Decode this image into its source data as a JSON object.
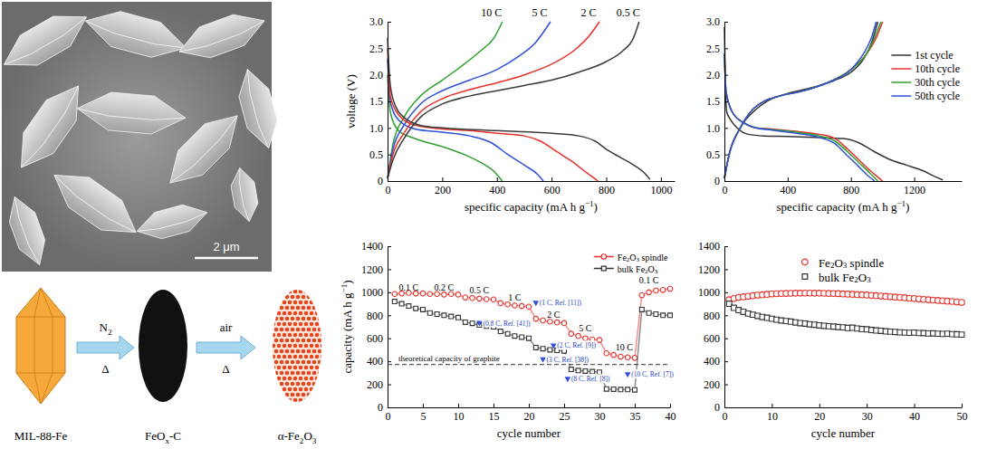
{
  "micrograph": {
    "scale_bar": "2 μm"
  },
  "scheme": {
    "steps": [
      {
        "label": "MIL-88-Fe"
      },
      {
        "label": "FeOx-C"
      },
      {
        "label": "α-Fe2O3"
      }
    ],
    "arrows": [
      {
        "above": "N2",
        "below": "Δ"
      },
      {
        "above": "air",
        "below": "Δ"
      }
    ]
  },
  "chart_data": [
    {
      "type": "line",
      "x_label": "specific capacity (mA h g−1)",
      "y_label": "voltage (V)",
      "xlim": [
        0,
        1050
      ],
      "xticks": [
        0,
        200,
        400,
        600,
        800,
        1000
      ],
      "ylim": [
        0,
        3
      ],
      "yticks": [
        0,
        0.5,
        {
          "value": 1,
          "label": "1.0"
        },
        1.5,
        {
          "value": 2,
          "label": "2.0"
        },
        2.5,
        {
          "value": 3,
          "label": "3.0"
        }
      ],
      "series": [
        {
          "name": "10 C",
          "color": "#2ca02c",
          "discharge": {
            "x": [
              0,
              10,
              40,
              100,
              200,
              280,
              340,
              390,
              420
            ],
            "values": [
              2.0,
              1.3,
              0.95,
              0.8,
              0.65,
              0.5,
              0.35,
              0.18,
              0
            ]
          },
          "charge": {
            "x": [
              0,
              20,
              60,
              120,
              200,
              280,
              340,
              390,
              420
            ],
            "values": [
              0.05,
              0.7,
              1.2,
              1.6,
              1.9,
              2.2,
              2.45,
              2.7,
              3.0
            ]
          }
        },
        {
          "name": "5 C",
          "color": "#2f4fd8",
          "discharge": {
            "x": [
              0,
              10,
              40,
              100,
              200,
              300,
              380,
              440,
              500,
              550,
              570
            ],
            "values": [
              2.3,
              1.5,
              1.15,
              0.98,
              0.92,
              0.85,
              0.72,
              0.5,
              0.3,
              0.12,
              0
            ]
          },
          "charge": {
            "x": [
              0,
              20,
              60,
              120,
              200,
              300,
              400,
              480,
              540,
              596
            ],
            "values": [
              0.05,
              0.6,
              1.05,
              1.45,
              1.7,
              1.9,
              2.1,
              2.35,
              2.6,
              3.0
            ]
          }
        },
        {
          "name": "2 C",
          "color": "#e8302a",
          "discharge": {
            "x": [
              0,
              10,
              40,
              100,
              200,
              300,
              400,
              500,
              560,
              620,
              680,
              730,
              770
            ],
            "values": [
              2.5,
              1.6,
              1.25,
              1.05,
              0.98,
              0.95,
              0.9,
              0.85,
              0.75,
              0.55,
              0.35,
              0.15,
              0
            ]
          },
          "charge": {
            "x": [
              0,
              20,
              60,
              120,
              200,
              300,
              400,
              500,
              600,
              680,
              740,
              775
            ],
            "values": [
              0.05,
              0.5,
              0.9,
              1.3,
              1.55,
              1.72,
              1.85,
              2.0,
              2.2,
              2.45,
              2.75,
              3.0
            ]
          }
        },
        {
          "name": "0.5 C",
          "color": "#3a3a3a",
          "discharge": {
            "x": [
              0,
              10,
              30,
              60,
              120,
              200,
              300,
              400,
              500,
              600,
              700,
              760,
              800,
              850,
              900,
              940,
              960
            ],
            "values": [
              2.7,
              1.8,
              1.4,
              1.2,
              1.05,
              1.0,
              0.97,
              0.95,
              0.93,
              0.9,
              0.85,
              0.75,
              0.6,
              0.45,
              0.3,
              0.15,
              0.03
            ]
          },
          "charge": {
            "x": [
              0,
              20,
              60,
              120,
              200,
              300,
              400,
              500,
              600,
              700,
              800,
              860,
              900,
              920
            ],
            "values": [
              0.05,
              0.4,
              0.8,
              1.2,
              1.45,
              1.6,
              1.7,
              1.8,
              1.9,
              2.05,
              2.25,
              2.45,
              2.7,
              3.0
            ]
          }
        }
      ]
    },
    {
      "type": "line",
      "x_label": "specific capacity (mA h g−1)",
      "legend": "upper right",
      "xlim": [
        0,
        1500
      ],
      "xticks": [
        0,
        400,
        800,
        1200
      ],
      "ylim": [
        0,
        3
      ],
      "yticks": [
        0,
        0.5,
        {
          "value": 1,
          "label": "1.0"
        },
        1.5,
        {
          "value": 2,
          "label": "2.0"
        },
        2.5,
        {
          "value": 3,
          "label": "3.0"
        }
      ],
      "series": [
        {
          "name": "1st cycle",
          "color": "#333333",
          "discharge": {
            "x": [
              0,
              5,
              15,
              40,
              80,
              150,
              250,
              400,
              600,
              750,
              850,
              950,
              1050,
              1150,
              1250,
              1320,
              1380
            ],
            "values": [
              2.9,
              2.0,
              1.3,
              1.15,
              1.0,
              0.88,
              0.85,
              0.84,
              0.82,
              0.8,
              0.72,
              0.55,
              0.4,
              0.3,
              0.2,
              0.1,
              0.02
            ]
          },
          "charge": {
            "x": [
              0,
              30,
              100,
              200,
              300,
              400,
              500,
              600,
              700,
              800,
              880,
              930,
              970
            ],
            "values": [
              0.05,
              0.5,
              1.0,
              1.35,
              1.55,
              1.65,
              1.72,
              1.8,
              1.9,
              2.05,
              2.3,
              2.6,
              3.0
            ]
          }
        },
        {
          "name": "10th cycle",
          "color": "#e8302a",
          "discharge": {
            "x": [
              0,
              10,
              50,
              120,
              200,
              300,
              400,
              500,
              600,
              700,
              780,
              850,
              920,
              980,
              1000
            ],
            "values": [
              2.4,
              1.7,
              1.3,
              1.1,
              1.0,
              0.98,
              0.95,
              0.92,
              0.88,
              0.8,
              0.6,
              0.4,
              0.2,
              0.05,
              0
            ]
          },
          "charge": {
            "x": [
              0,
              30,
              100,
              180,
              250,
              350,
              500,
              650,
              800,
              900,
              960,
              1000
            ],
            "values": [
              0.05,
              0.5,
              1.0,
              1.35,
              1.5,
              1.6,
              1.7,
              1.85,
              2.1,
              2.4,
              2.7,
              3.0
            ]
          }
        },
        {
          "name": "30th cycle",
          "color": "#2ca02c",
          "discharge": {
            "x": [
              0,
              10,
              50,
              120,
              200,
              300,
              400,
              500,
              600,
              700,
              780,
              850,
              920,
              970
            ],
            "values": [
              2.4,
              1.7,
              1.3,
              1.1,
              1.0,
              0.97,
              0.94,
              0.9,
              0.85,
              0.75,
              0.55,
              0.35,
              0.15,
              0
            ]
          },
          "charge": {
            "x": [
              0,
              30,
              100,
              180,
              250,
              350,
              500,
              650,
              800,
              900,
              950,
              990
            ],
            "values": [
              0.05,
              0.5,
              1.0,
              1.35,
              1.5,
              1.6,
              1.7,
              1.85,
              2.1,
              2.4,
              2.7,
              3.0
            ]
          }
        },
        {
          "name": "50th cycle",
          "color": "#2f4fd8",
          "discharge": {
            "x": [
              0,
              10,
              50,
              120,
              200,
              300,
              400,
              500,
              600,
              700,
              770,
              840,
              900,
              950
            ],
            "values": [
              2.4,
              1.7,
              1.3,
              1.1,
              1.0,
              0.96,
              0.92,
              0.88,
              0.82,
              0.7,
              0.5,
              0.3,
              0.12,
              0
            ]
          },
          "charge": {
            "x": [
              0,
              30,
              100,
              180,
              250,
              350,
              500,
              650,
              800,
              880,
              930,
              960
            ],
            "values": [
              0.05,
              0.5,
              1.0,
              1.35,
              1.5,
              1.6,
              1.7,
              1.85,
              2.1,
              2.4,
              2.7,
              3.0
            ]
          }
        }
      ]
    },
    {
      "type": "line",
      "x_label": "cycle number",
      "y_label": "capacity (mA h g−1)",
      "legend": "upper right",
      "xlim": [
        0,
        40
      ],
      "xticks": [
        0,
        5,
        10,
        15,
        20,
        25,
        30,
        35,
        40
      ],
      "ylim": [
        0,
        1400
      ],
      "yticks": [
        0,
        200,
        400,
        600,
        800,
        1000,
        1200,
        1400
      ],
      "x": [
        1,
        2,
        3,
        4,
        5,
        6,
        7,
        8,
        9,
        10,
        11,
        12,
        13,
        14,
        15,
        16,
        17,
        18,
        19,
        20,
        21,
        22,
        23,
        24,
        25,
        26,
        27,
        28,
        29,
        30,
        31,
        32,
        33,
        34,
        35,
        36,
        37,
        38,
        39,
        40
      ],
      "series": [
        {
          "name": "Fe2O3 spindle",
          "color": "#e8302a",
          "marker": "circle",
          "line_style": "solid",
          "values": [
            985,
            990,
            995,
            990,
            990,
            985,
            985,
            980,
            985,
            980,
            955,
            950,
            945,
            940,
            938,
            905,
            895,
            885,
            880,
            875,
            770,
            755,
            745,
            738,
            732,
            640,
            620,
            600,
            590,
            585,
            470,
            455,
            440,
            435,
            430,
            975,
            1000,
            1015,
            1020,
            1030
          ]
        },
        {
          "name": "bulk Fe2O3",
          "color": "#333333",
          "marker": "square",
          "line_style": "solid",
          "values": [
            920,
            900,
            880,
            860,
            850,
            820,
            810,
            800,
            790,
            780,
            740,
            730,
            715,
            705,
            700,
            660,
            640,
            620,
            610,
            600,
            520,
            510,
            500,
            495,
            490,
            330,
            320,
            315,
            310,
            305,
            160,
            158,
            155,
            155,
            152,
            850,
            820,
            810,
            800,
            800
          ]
        }
      ],
      "annotations": [
        {
          "x": 3,
          "value": 1050,
          "label": "0.1 C"
        },
        {
          "x": 8,
          "value": 1045,
          "label": "0.2 C"
        },
        {
          "x": 13,
          "value": 1020,
          "label": "0.5 C"
        },
        {
          "x": 18,
          "value": 960,
          "label": "1 C"
        },
        {
          "x": 23.5,
          "value": 810,
          "label": "2 C"
        },
        {
          "x": 28,
          "value": 690,
          "label": "5 C"
        },
        {
          "x": 33.5,
          "value": 530,
          "label": "10 C"
        },
        {
          "x": 37,
          "value": 1110,
          "label": "0.1 C"
        }
      ],
      "references": [
        {
          "x": 21,
          "value": 910,
          "label": "(1 C, Ref. [11])"
        },
        {
          "x": 13,
          "value": 735,
          "label": "(0.8 C, Ref. [41])"
        },
        {
          "x": 23.5,
          "value": 540,
          "label": "(2 C, Ref. [9])"
        },
        {
          "x": 22,
          "value": 420,
          "label": "(3 C, Ref. [38])"
        },
        {
          "x": 25.5,
          "value": 250,
          "label": "(8 C, Ref. [8])"
        },
        {
          "x": 34,
          "value": 290,
          "label": "(10 C, Ref. [7])"
        }
      ],
      "reference_line": {
        "value": 372,
        "label": "theoretical capacity of graphite",
        "line_style": "dashed"
      }
    },
    {
      "type": "line",
      "x_label": "cycle number",
      "legend": "top",
      "xlim": [
        0,
        50
      ],
      "xticks": [
        0,
        10,
        20,
        30,
        40,
        50
      ],
      "ylim": [
        0,
        1400
      ],
      "yticks": [
        0,
        200,
        400,
        600,
        800,
        1000,
        1200,
        1400
      ],
      "x": [
        1,
        2,
        3,
        4,
        5,
        6,
        7,
        8,
        9,
        10,
        11,
        12,
        13,
        14,
        15,
        16,
        17,
        18,
        19,
        20,
        21,
        22,
        23,
        24,
        25,
        26,
        27,
        28,
        29,
        30,
        31,
        32,
        33,
        34,
        35,
        36,
        37,
        38,
        39,
        40,
        41,
        42,
        43,
        44,
        45,
        46,
        47,
        48,
        49,
        50
      ],
      "series": [
        {
          "name": "Fe2O3 spindle",
          "color": "#e8302a",
          "marker": "circle",
          "line_style": "none",
          "values": [
            935,
            945,
            955,
            960,
            965,
            970,
            975,
            978,
            982,
            985,
            987,
            989,
            990,
            991,
            992,
            992,
            993,
            993,
            992,
            992,
            991,
            990,
            989,
            988,
            986,
            984,
            982,
            980,
            978,
            976,
            973,
            970,
            967,
            964,
            961,
            958,
            955,
            952,
            948,
            945,
            941,
            938,
            935,
            932,
            929,
            926,
            923,
            920,
            916,
            912
          ]
        },
        {
          "name": "bulk Fe2O3",
          "color": "#333333",
          "marker": "square",
          "line_style": "none",
          "values": [
            900,
            865,
            845,
            830,
            815,
            805,
            795,
            785,
            778,
            770,
            762,
            755,
            750,
            745,
            738,
            732,
            728,
            722,
            718,
            712,
            708,
            705,
            702,
            698,
            695,
            690,
            692,
            685,
            680,
            678,
            672,
            668,
            665,
            660,
            658,
            655,
            652,
            650,
            648,
            650,
            646,
            645,
            642,
            643,
            640,
            638,
            640,
            636,
            635,
            632
          ]
        }
      ]
    }
  ]
}
